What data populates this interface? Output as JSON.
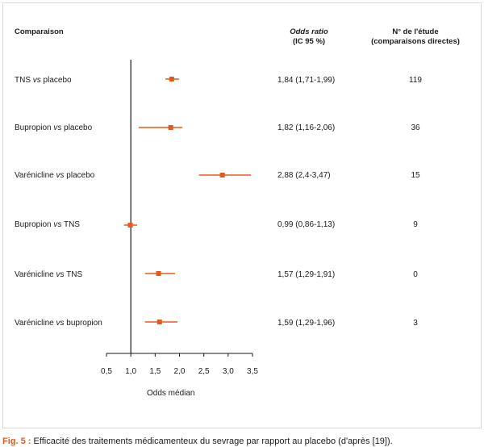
{
  "headers": {
    "comparison": "Comparaison",
    "or_line1": "Odds ratio",
    "or_line2": "(IC 95 %)",
    "n_line1": "N° de l'étude",
    "n_line2": "(comparaisons directes)"
  },
  "rows": [
    {
      "pre": "TNS ",
      "vs": "vs",
      "post": " placebo",
      "or_text": "1,84 (1,71-1,99)",
      "n": "119"
    },
    {
      "pre": "Bupropion ",
      "vs": "vs",
      "post": " placebo",
      "or_text": "1,82 (1,16-2,06)",
      "n": "36"
    },
    {
      "pre": "Varénicline ",
      "vs": "vs",
      "post": " placebo",
      "or_text": "2,88 (2,4-3,47)",
      "n": "15"
    },
    {
      "pre": "Bupropion ",
      "vs": "vs",
      "post": " TNS",
      "or_text": "0,99 (0,86-1,13)",
      "n": "9"
    },
    {
      "pre": "Varénicline ",
      "vs": "vs",
      "post": " TNS",
      "or_text": "1,57 (1,29-1,91)",
      "n": "0"
    },
    {
      "pre": "Varénicline ",
      "vs": "vs",
      "post": " bupropion",
      "or_text": "1,59 (1,29-1,96)",
      "n": "3"
    }
  ],
  "chart_data": {
    "type": "forest",
    "xlabel": "Odds médian",
    "xlim": [
      0.5,
      3.5
    ],
    "xticks": [
      0.5,
      1.0,
      1.5,
      2.0,
      2.5,
      3.0,
      3.5
    ],
    "xtick_labels": [
      "0,5",
      "1,0",
      "1,5",
      "2,0",
      "2,5",
      "3,0",
      "3,5"
    ],
    "reference_line": 1.0,
    "points": [
      {
        "label": "TNS vs placebo",
        "or": 1.84,
        "lo": 1.71,
        "hi": 1.99
      },
      {
        "label": "Bupropion vs placebo",
        "or": 1.82,
        "lo": 1.16,
        "hi": 2.06
      },
      {
        "label": "Varénicline vs placebo",
        "or": 2.88,
        "lo": 2.4,
        "hi": 3.47
      },
      {
        "label": "Bupropion vs TNS",
        "or": 0.99,
        "lo": 0.86,
        "hi": 1.13
      },
      {
        "label": "Varénicline vs TNS",
        "or": 1.57,
        "lo": 1.29,
        "hi": 1.91
      },
      {
        "label": "Varénicline vs bupropion",
        "or": 1.59,
        "lo": 1.29,
        "hi": 1.96
      }
    ],
    "marker_color": "#e55a1c"
  },
  "caption": {
    "fig_label": "Fig. 5 :",
    "text": " Efficacité des traitements médicamenteux du sevrage par rapport au placebo (d'après [19])."
  }
}
